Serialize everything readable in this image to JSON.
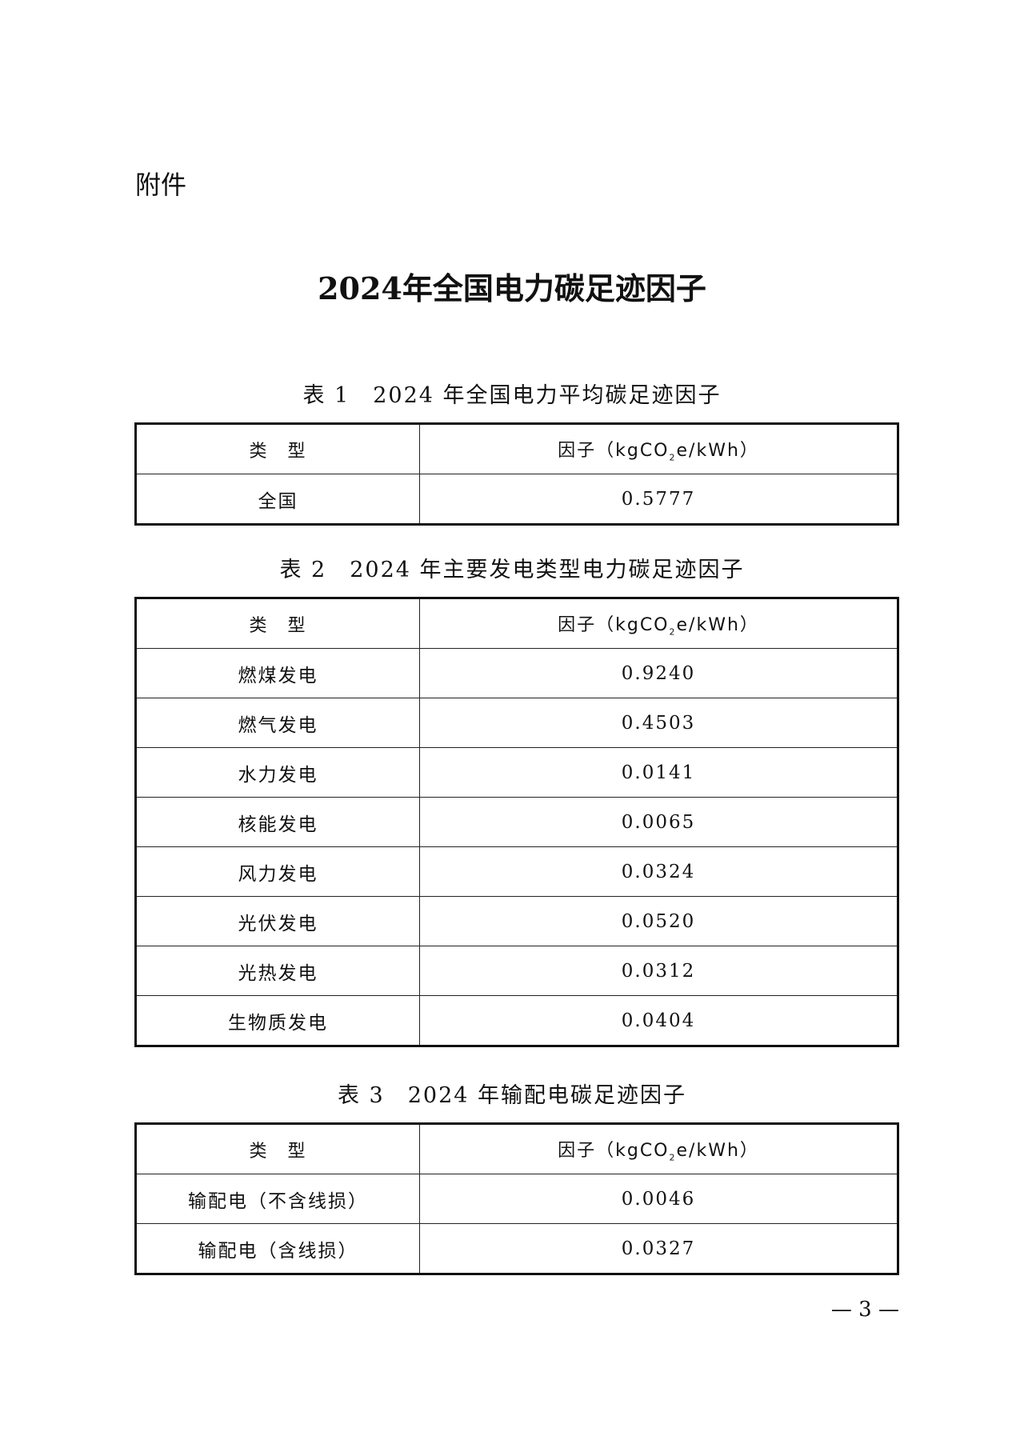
{
  "attachment_label": "附件",
  "title": "2024年全国电力碳足迹因子",
  "header": {
    "type": "类　型",
    "factor_prefix": "因子（kgCO",
    "factor_sub": "2",
    "factor_suffix": "e/kWh）"
  },
  "tables": [
    {
      "caption": "表 1　2024 年全国电力平均碳足迹因子",
      "rows": [
        {
          "type": "全国",
          "factor": "0.5777"
        }
      ]
    },
    {
      "caption": "表 2　2024 年主要发电类型电力碳足迹因子",
      "rows": [
        {
          "type": "燃煤发电",
          "factor": "0.9240"
        },
        {
          "type": "燃气发电",
          "factor": "0.4503"
        },
        {
          "type": "水力发电",
          "factor": "0.0141"
        },
        {
          "type": "核能发电",
          "factor": "0.0065"
        },
        {
          "type": "风力发电",
          "factor": "0.0324"
        },
        {
          "type": "光伏发电",
          "factor": "0.0520"
        },
        {
          "type": "光热发电",
          "factor": "0.0312"
        },
        {
          "type": "生物质发电",
          "factor": "0.0404"
        }
      ]
    },
    {
      "caption": "表 3　2024 年输配电碳足迹因子",
      "rows": [
        {
          "type": "输配电（不含线损）",
          "factor": "0.0046"
        },
        {
          "type": "输配电（含线损）",
          "factor": "0.0327"
        }
      ]
    }
  ],
  "page_number": "— 3 —"
}
